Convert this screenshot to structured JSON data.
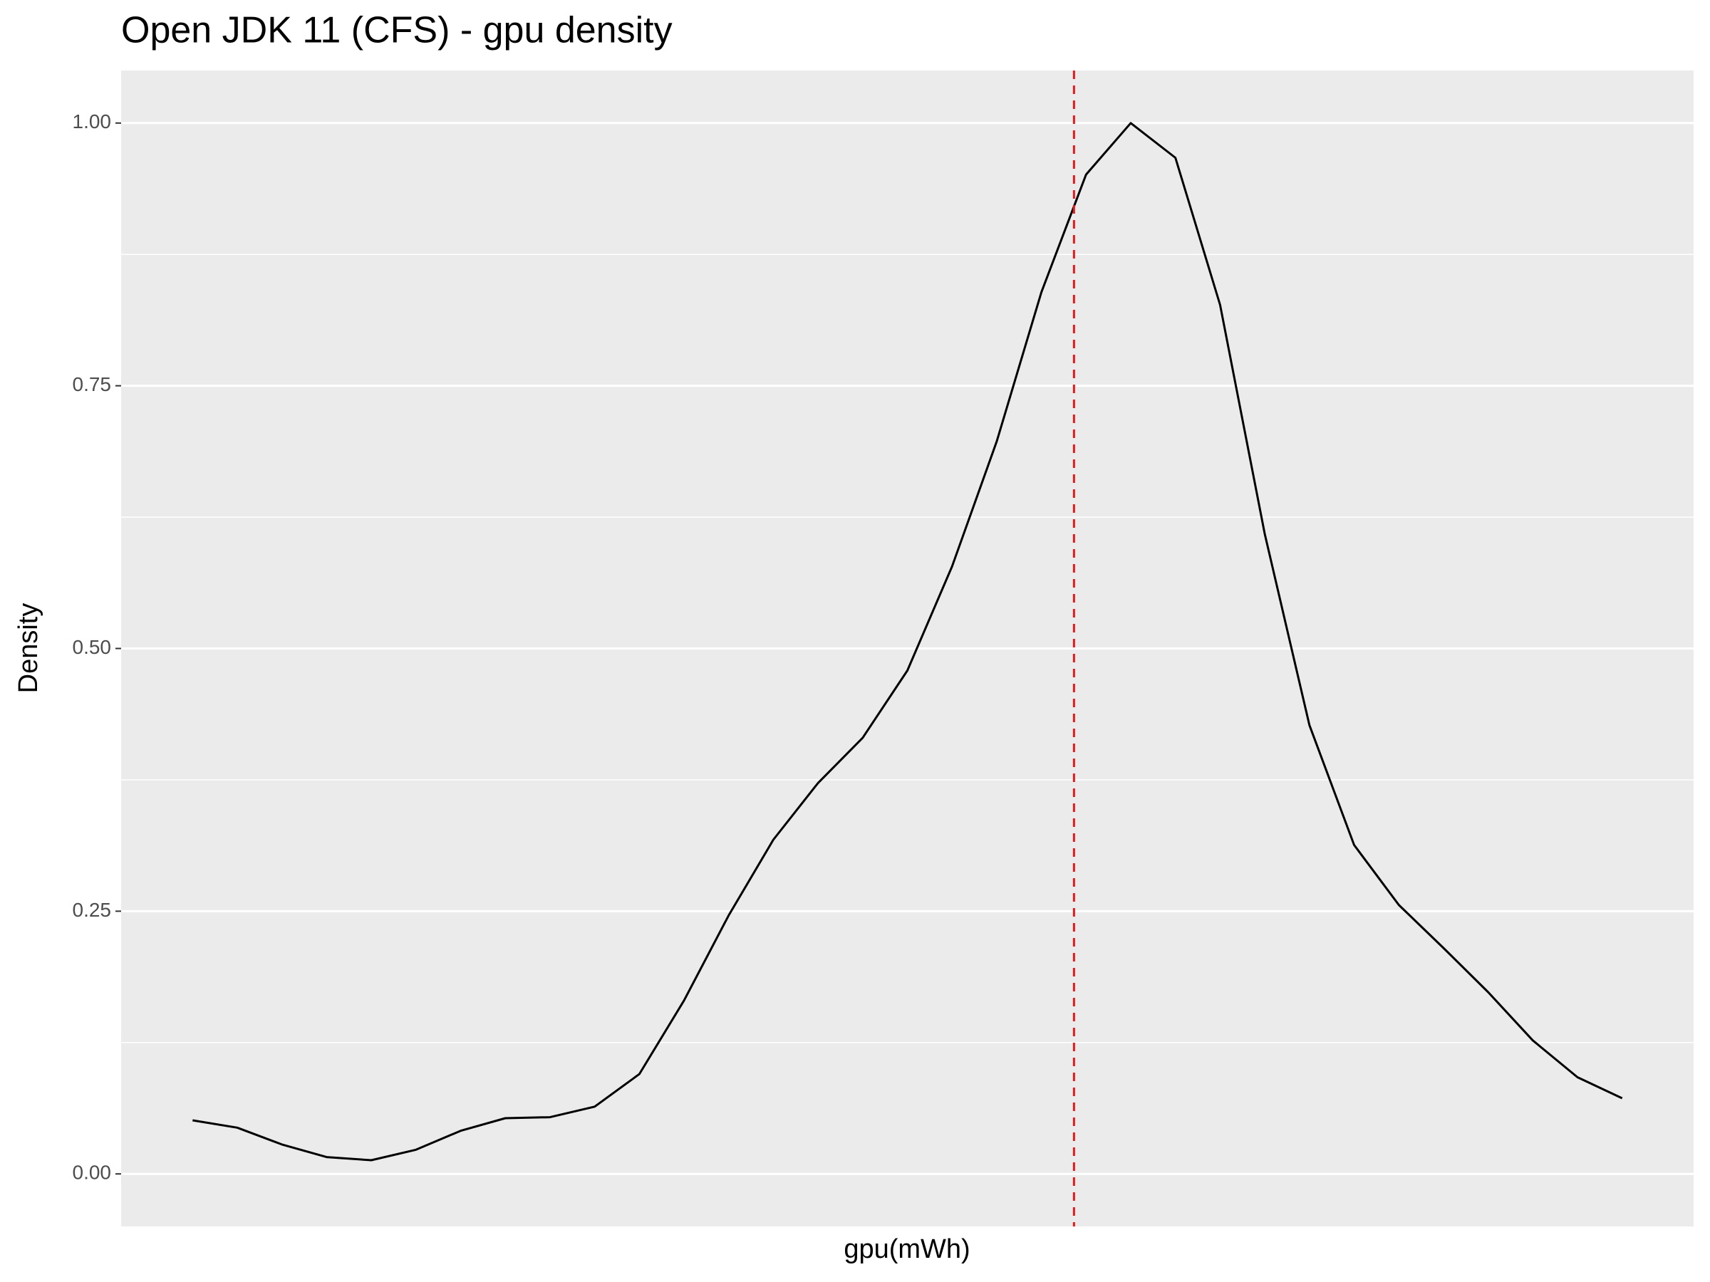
{
  "chart_data": {
    "type": "line",
    "title": "Open JDK 11 (CFS) - gpu density",
    "x_label": "gpu(mWh)",
    "y_label": "Density",
    "series": [
      {
        "color": "#000000",
        "values": [
          0.051,
          0.044,
          0.028,
          0.016,
          0.013,
          0.023,
          0.041,
          0.053,
          0.054,
          0.064,
          0.095,
          0.165,
          0.246,
          0.318,
          0.372,
          0.415,
          0.479,
          0.578,
          0.697,
          0.839,
          0.951,
          1.0,
          0.967,
          0.827,
          0.609,
          0.427,
          0.313,
          0.256,
          0.215,
          0.173,
          0.127,
          0.092,
          0.072
        ]
      }
    ],
    "vline": {
      "x": 19.73,
      "color": "#e41a1c"
    },
    "ylim": [
      -0.05,
      1.05
    ],
    "yticks": [
      {
        "value": 0,
        "label": "0.00"
      },
      {
        "value": 0.25,
        "label": "0.25"
      },
      {
        "value": 0.5,
        "label": "0.50"
      },
      {
        "value": 0.75,
        "label": "0.75"
      },
      {
        "value": 1,
        "label": "1.00"
      }
    ],
    "yminor": [
      0.125,
      0.375,
      0.625,
      0.875
    ],
    "grid": true
  }
}
